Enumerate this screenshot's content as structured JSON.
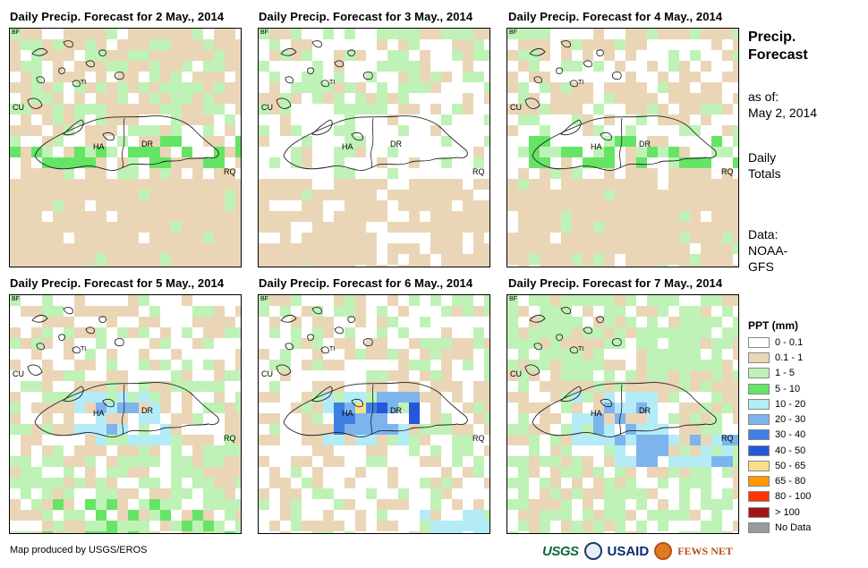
{
  "panels": [
    {
      "title": "Daily Precip. Forecast for 2 May., 2014"
    },
    {
      "title": "Daily Precip. Forecast for 3 May., 2014"
    },
    {
      "title": "Daily Precip. Forecast for 4 May., 2014"
    },
    {
      "title": "Daily Precip. Forecast for 5 May., 2014"
    },
    {
      "title": "Daily Precip. Forecast for 6 May., 2014"
    },
    {
      "title": "Daily Precip. Forecast for 7 May., 2014"
    }
  ],
  "map_labels": {
    "bf": "BF",
    "ti": "TI",
    "cu": "CU",
    "ha": "HA",
    "dr": "DR",
    "rq": "RQ"
  },
  "side": {
    "title_line1": "Precip.",
    "title_line2": "Forecast",
    "asof_line1": "as of:",
    "asof_line2": "May 2, 2014",
    "totals_line1": "Daily",
    "totals_line2": "Totals",
    "data_line1": "Data:",
    "data_line2": "NOAA-",
    "data_line3": "GFS"
  },
  "legend": {
    "title": "PPT (mm)",
    "items": [
      {
        "label": "0 - 0.1",
        "color": "#ffffff"
      },
      {
        "label": "0.1 - 1",
        "color": "#ead6b6"
      },
      {
        "label": "1 - 5",
        "color": "#bff2b6"
      },
      {
        "label": "5 - 10",
        "color": "#66e466"
      },
      {
        "label": "10 - 20",
        "color": "#b3ecf7"
      },
      {
        "label": "20 - 30",
        "color": "#7db4ee"
      },
      {
        "label": "30 - 40",
        "color": "#3f7ee3"
      },
      {
        "label": "40 - 50",
        "color": "#2458d8"
      },
      {
        "label": "50 - 65",
        "color": "#f8e08a"
      },
      {
        "label": "65 - 80",
        "color": "#ff9900"
      },
      {
        "label": "80 - 100",
        "color": "#ff3300"
      },
      {
        "label": "> 100",
        "color": "#a31515"
      },
      {
        "label": "No Data",
        "color": "#9a9a9a"
      }
    ]
  },
  "footer": {
    "credit": "Map produced by USGS/EROS"
  },
  "logos": {
    "usgs": "USGS",
    "usaid": "USAID",
    "fews": "FEWS NET"
  }
}
